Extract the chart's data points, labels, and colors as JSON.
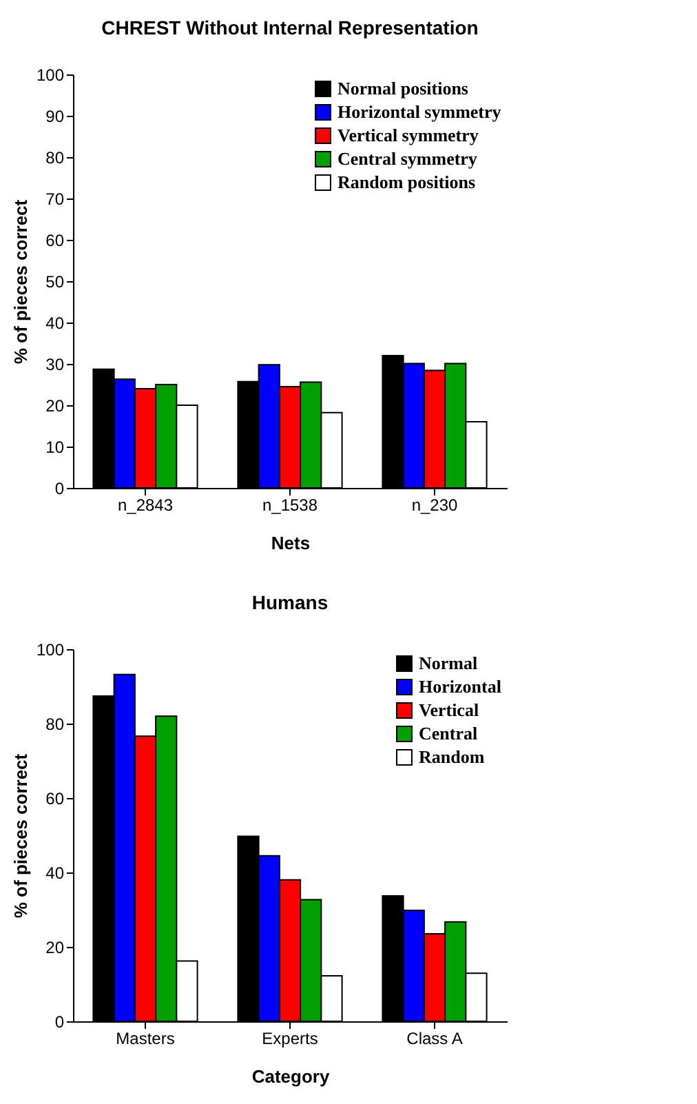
{
  "chart_data": [
    {
      "type": "bar",
      "title": "CHREST Without Internal Representation",
      "xlabel": "Nets",
      "ylabel": "% of pieces correct",
      "categories": [
        "n_2843",
        "n_1538",
        "n_230"
      ],
      "series": [
        {
          "name": "Normal positions",
          "color": "#000000",
          "values": [
            28.7,
            25.7,
            32
          ]
        },
        {
          "name": "Horizontal symmetry",
          "color": "#0000ff",
          "values": [
            26.3,
            29.8,
            30.1
          ]
        },
        {
          "name": "Vertical symmetry",
          "color": "#ff0000",
          "values": [
            24,
            24.5,
            28.4
          ]
        },
        {
          "name": "Central symmetry",
          "color": "#00a000",
          "values": [
            25,
            25.6,
            30.1
          ]
        },
        {
          "name": "Random positions",
          "color": "#ffffff",
          "values": [
            20,
            18.2,
            16
          ]
        }
      ],
      "ylim": [
        0,
        100
      ],
      "yticks": [
        0,
        10,
        20,
        30,
        40,
        50,
        60,
        70,
        80,
        90,
        100
      ],
      "grid": false,
      "legend": "top right"
    },
    {
      "type": "bar",
      "title": "Humans",
      "xlabel": "Category",
      "ylabel": "% of pieces correct",
      "categories": [
        "Masters",
        "Experts",
        "Class A"
      ],
      "series": [
        {
          "name": "Normal",
          "color": "#000000",
          "values": [
            87.4,
            49.7,
            33.7
          ]
        },
        {
          "name": "Horizontal",
          "color": "#0000ff",
          "values": [
            93.2,
            44.5,
            29.8
          ]
        },
        {
          "name": "Vertical",
          "color": "#ff0000",
          "values": [
            76.6,
            38,
            23.5
          ]
        },
        {
          "name": "Central",
          "color": "#00a000",
          "values": [
            82,
            32.7,
            26.7
          ]
        },
        {
          "name": "Random",
          "color": "#ffffff",
          "values": [
            16.2,
            12.2,
            12.9
          ]
        }
      ],
      "ylim": [
        0,
        100
      ],
      "yticks": [
        0,
        20,
        40,
        60,
        80,
        100
      ],
      "grid": false,
      "legend": "top right"
    }
  ]
}
